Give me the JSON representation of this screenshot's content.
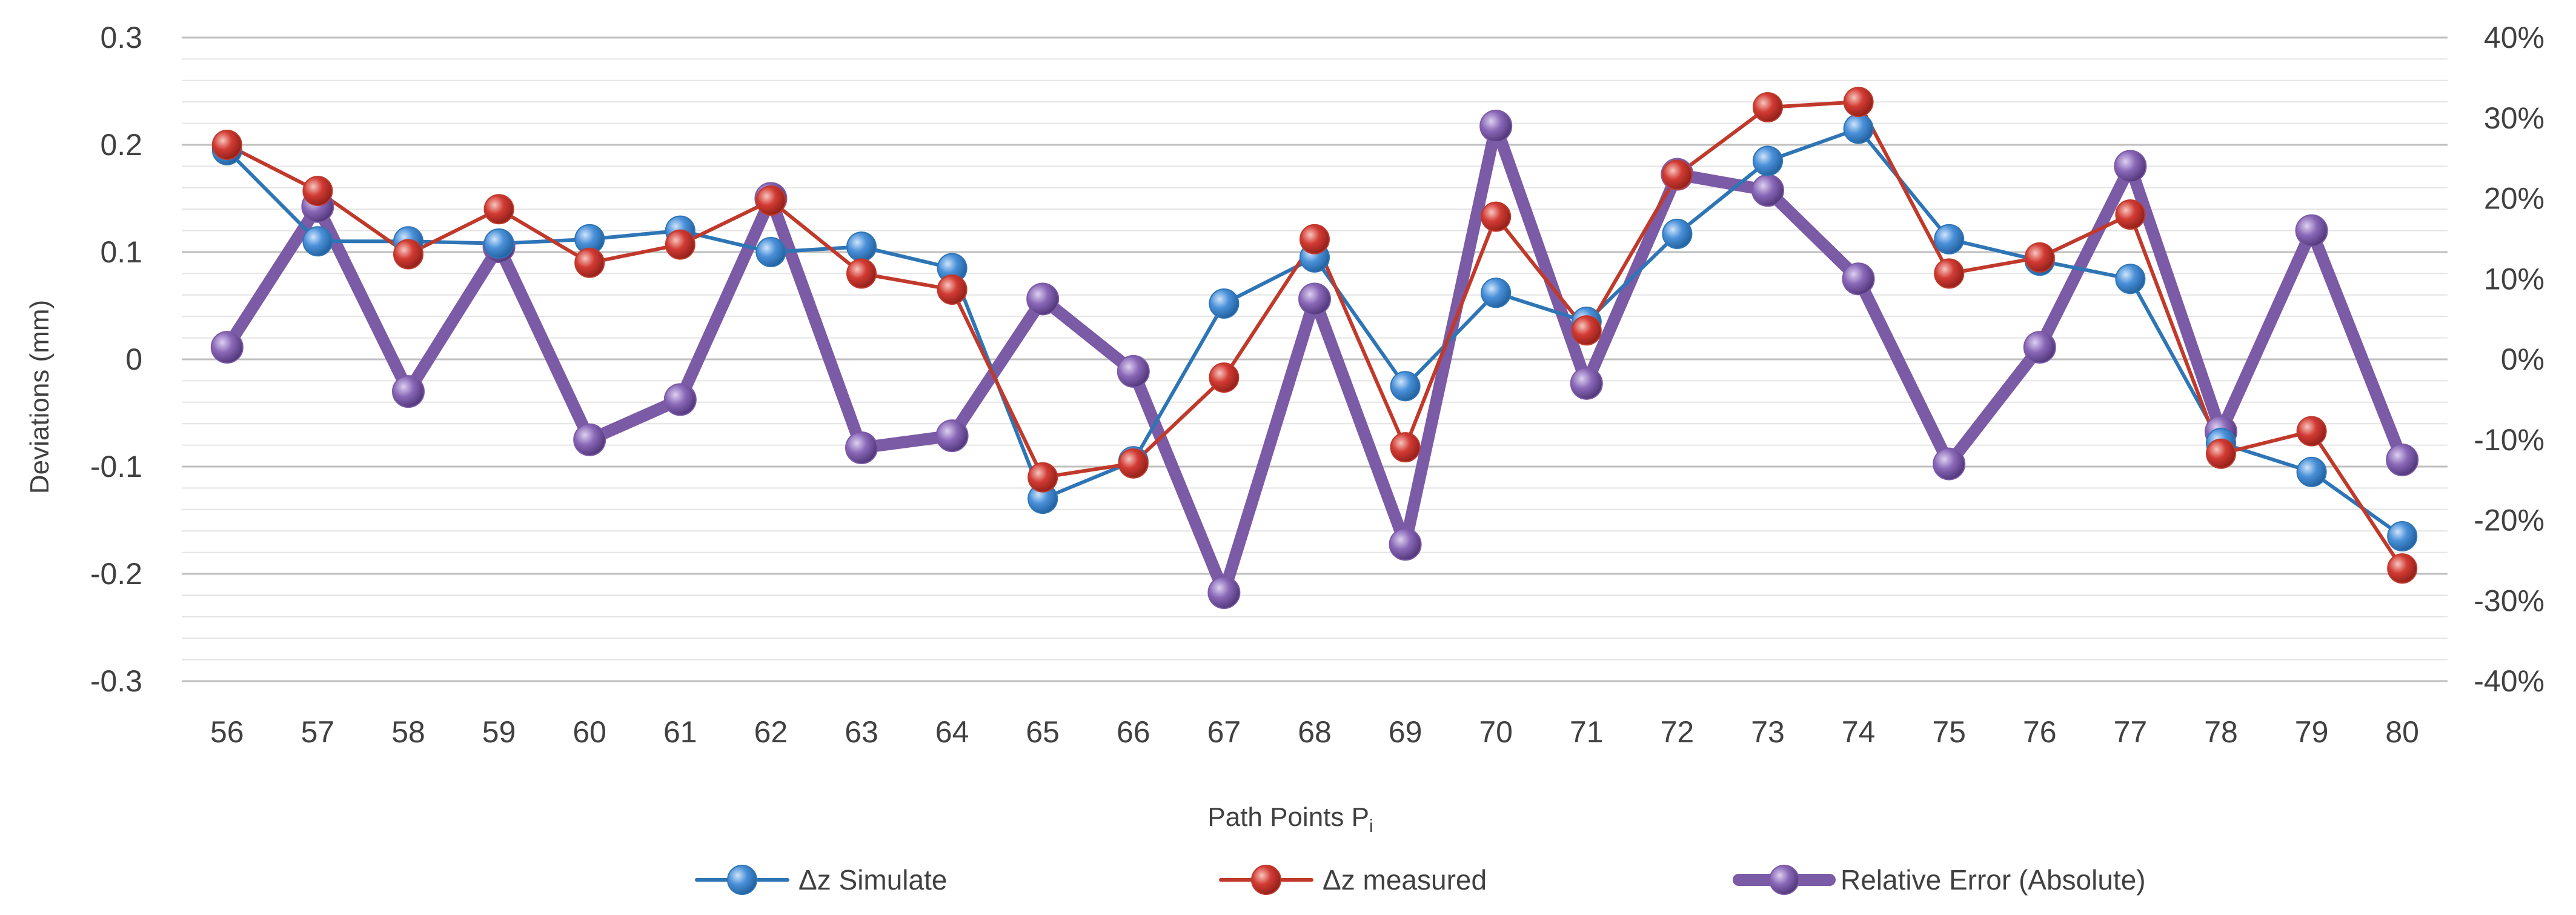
{
  "chart_data": {
    "type": "line",
    "title": "",
    "xlabel": "Path Points P",
    "xlabel_subscript": "i",
    "ylabel": "Deviations (mm)",
    "y2label": "",
    "categories": [
      "56",
      "57",
      "58",
      "59",
      "60",
      "61",
      "62",
      "63",
      "64",
      "65",
      "66",
      "67",
      "68",
      "69",
      "70",
      "71",
      "72",
      "73",
      "74",
      "75",
      "76",
      "77",
      "78",
      "79",
      "80"
    ],
    "ylim": [
      -0.3,
      0.3
    ],
    "y_ticks": [
      0.3,
      0.2,
      0.1,
      0,
      -0.1,
      -0.2,
      -0.3
    ],
    "y_tick_labels": [
      "0.3",
      "0.2",
      "0.1",
      "0",
      "-0.1",
      "-0.2",
      "-0.3"
    ],
    "y2lim": [
      -40,
      40
    ],
    "y2_ticks": [
      40,
      30,
      20,
      10,
      0,
      -10,
      -20,
      -30,
      -40
    ],
    "y2_tick_labels": [
      "40%",
      "30%",
      "20%",
      "10%",
      "0%",
      "-10%",
      "-20%",
      "-30%",
      "-40%"
    ],
    "grid": true,
    "legend_position": "bottom",
    "series": [
      {
        "name": "Δz Simulate",
        "axis": "left",
        "color": "#2e75b6",
        "values": [
          0.195,
          0.11,
          0.11,
          0.108,
          0.112,
          0.12,
          0.1,
          0.105,
          0.085,
          -0.13,
          -0.095,
          0.052,
          0.095,
          -0.025,
          0.062,
          0.035,
          0.117,
          0.185,
          0.215,
          0.112,
          0.092,
          0.075,
          -0.078,
          -0.105,
          -0.165
        ]
      },
      {
        "name": "Δz measured",
        "axis": "left",
        "color": "#c0392b",
        "values": [
          0.2,
          0.157,
          0.098,
          0.14,
          0.09,
          0.107,
          0.148,
          0.08,
          0.065,
          -0.11,
          -0.097,
          -0.017,
          0.112,
          -0.082,
          0.133,
          0.027,
          0.172,
          0.235,
          0.24,
          0.08,
          0.095,
          0.135,
          -0.088,
          -0.067,
          -0.195
        ]
      },
      {
        "name": "Relative Error (Absolute)",
        "axis": "right",
        "color": "#7b5aa6",
        "values": [
          1.5,
          19,
          -4,
          14,
          -10,
          -5,
          20,
          -11,
          -9.5,
          7.5,
          -1.5,
          -29,
          7.5,
          -23,
          29,
          -3,
          23,
          21,
          10,
          -13,
          1.5,
          24,
          -9,
          16,
          -12.5
        ]
      }
    ]
  }
}
